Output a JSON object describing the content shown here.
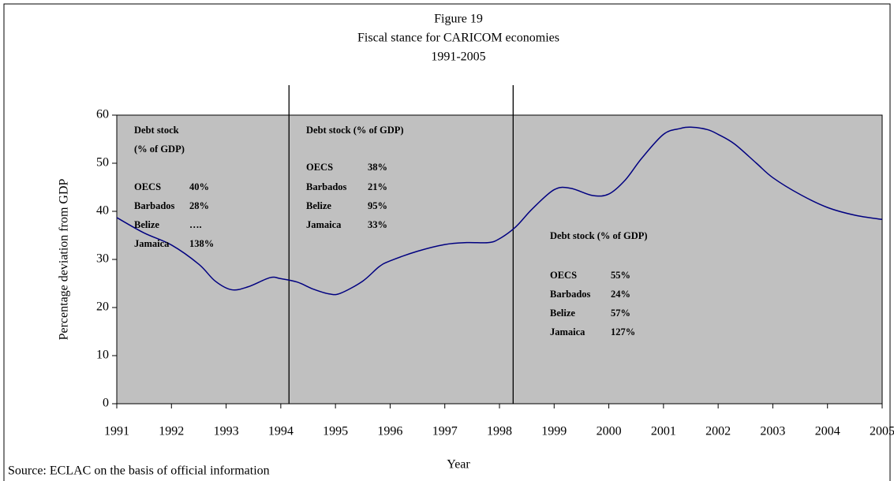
{
  "chart_data": {
    "type": "line",
    "title": "Figure 19",
    "subtitle": [
      "Fiscal stance for CARICOM economies",
      "1991-2005"
    ],
    "x_label": "Year",
    "y_label": "Percentage deviation from GDP",
    "source": "Source: ECLAC on the basis of official information",
    "series": [
      {
        "name": "Fiscal stance",
        "color": "#000080",
        "x": [
          1991,
          1991.5,
          1992,
          1992.5,
          1992.8,
          1993.1,
          1993.4,
          1993.8,
          1994.0,
          1994.3,
          1994.6,
          1994.9,
          1995.1,
          1995.5,
          1995.8,
          1996,
          1996.5,
          1997,
          1997.4,
          1997.8,
          1998,
          1998.3,
          1998.6,
          1999,
          1999.3,
          1999.7,
          2000,
          2000.3,
          2000.6,
          2001,
          2001.3,
          2001.5,
          2001.8,
          2002,
          2002.3,
          2002.7,
          2003,
          2003.5,
          2004,
          2004.5,
          2005
        ],
        "values": [
          38.7,
          35.5,
          33,
          29,
          25.5,
          23.7,
          24.3,
          26.2,
          26,
          25.3,
          23.8,
          22.8,
          23,
          25.5,
          28.5,
          29.7,
          31.7,
          33.1,
          33.5,
          33.5,
          34.3,
          36.8,
          40.5,
          44.5,
          44.8,
          43.3,
          43.6,
          46.5,
          51,
          56,
          57.2,
          57.5,
          57,
          56,
          54,
          50,
          47,
          43.5,
          40.8,
          39.2,
          38.3
        ]
      }
    ],
    "vertical_lines": [
      1994.15,
      1998.25
    ],
    "xlim": [
      1991,
      2005
    ],
    "xticks": [
      1991,
      1992,
      1993,
      1994,
      1995,
      1996,
      1997,
      1998,
      1999,
      2000,
      2001,
      2002,
      2003,
      2004,
      2005
    ],
    "ylim": [
      0,
      60
    ],
    "yticks": [
      0,
      10,
      20,
      30,
      40,
      50,
      60
    ],
    "plot_background": "#c0c0c0",
    "annotations": [
      {
        "heading": [
          "Debt stock",
          "(% of GDP)"
        ],
        "rows": [
          [
            "OECS",
            "40%"
          ],
          [
            "Barbados",
            "28%"
          ],
          [
            "Belize",
            "…."
          ],
          [
            "Jamaica",
            "138%"
          ]
        ]
      },
      {
        "heading": [
          "Debt stock (% of GDP)"
        ],
        "rows": [
          [
            "OECS",
            "38%"
          ],
          [
            "Barbados",
            "21%"
          ],
          [
            "Belize",
            "95%"
          ],
          [
            "Jamaica",
            "33%"
          ]
        ]
      },
      {
        "heading": [
          "Debt stock (% of GDP)"
        ],
        "rows": [
          [
            "OECS",
            "55%"
          ],
          [
            "Barbados",
            "24%"
          ],
          [
            "Belize",
            "57%"
          ],
          [
            "Jamaica",
            "127%"
          ]
        ]
      }
    ]
  }
}
